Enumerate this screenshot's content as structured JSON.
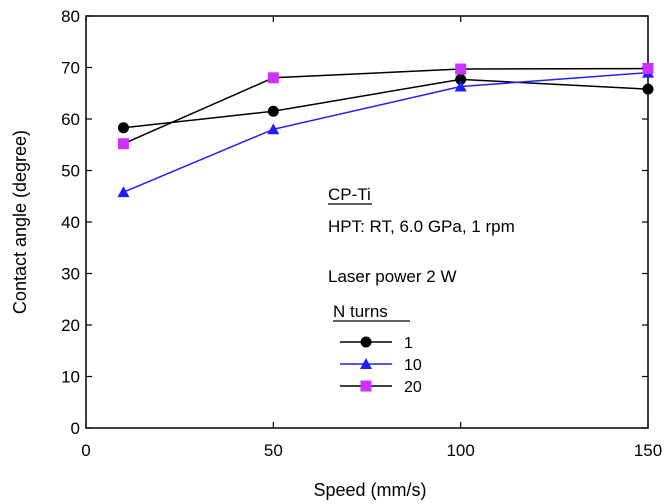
{
  "chart_data": {
    "type": "line",
    "xlabel": "Speed (mm/s)",
    "ylabel": "Contact angle (degree)",
    "xlim": [
      0,
      150
    ],
    "ylim": [
      0,
      80
    ],
    "xticks": [
      0,
      50,
      100,
      150
    ],
    "yticks": [
      0,
      10,
      20,
      30,
      40,
      50,
      60,
      70,
      80
    ],
    "grid": false,
    "legend_placement": "bottom-center",
    "legend_title": "N turns",
    "annotations": {
      "material": "CP-Ti",
      "process": "HPT: RT, 6.0 GPa, 1 rpm",
      "laser": "Laser power 2 W"
    },
    "series": [
      {
        "name": "1",
        "color": "#000000",
        "marker": "circle",
        "x": [
          10,
          50,
          100,
          150
        ],
        "y": [
          58.3,
          61.5,
          67.7,
          65.8
        ]
      },
      {
        "name": "10",
        "color": "#1f1fff",
        "marker": "triangle",
        "x": [
          10,
          50,
          100,
          150
        ],
        "y": [
          45.8,
          58.0,
          66.3,
          69.0
        ]
      },
      {
        "name": "20",
        "color": "#cc33ff",
        "marker": "square",
        "x": [
          10,
          50,
          100,
          150
        ],
        "y": [
          55.2,
          68.0,
          69.7,
          69.8
        ]
      }
    ],
    "line_color": {
      "1": "#000000",
      "10": "#1f1fff",
      "20": "#000000"
    }
  }
}
